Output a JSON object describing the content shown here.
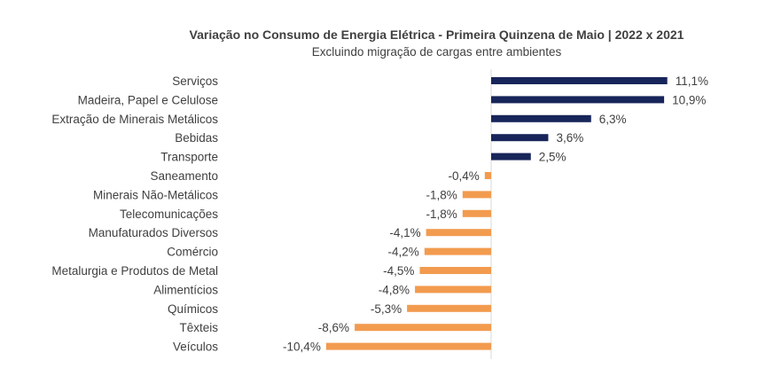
{
  "chart_data": {
    "type": "bar",
    "orientation": "horizontal",
    "title": "Variação no Consumo de Energia Elétrica - Primeira Quinzena de Maio | 2022 x 2021",
    "subtitle": "Excluindo migração de cargas entre ambientes",
    "categories": [
      "Serviços",
      "Madeira, Papel e Celulose",
      "Extração de Minerais Metálicos",
      "Bebidas",
      "Transporte",
      "Saneamento",
      "Minerais Não-Metálicos",
      "Telecomunicações",
      "Manufaturados Diversos",
      "Comércio",
      "Metalurgia e Produtos de Metal",
      "Alimentícios",
      "Químicos",
      "Têxteis",
      "Veículos"
    ],
    "values": [
      11.1,
      10.9,
      6.3,
      3.6,
      2.5,
      -0.4,
      -1.8,
      -1.8,
      -4.1,
      -4.2,
      -4.5,
      -4.8,
      -5.3,
      -8.6,
      -10.4
    ],
    "value_labels": [
      "11,1%",
      "10,9%",
      "6,3%",
      "3,6%",
      "2,5%",
      "-0,4%",
      "-1,8%",
      "-1,8%",
      "-4,1%",
      "-4,2%",
      "-4,5%",
      "-4,8%",
      "-5,3%",
      "-8,6%",
      "-10,4%"
    ],
    "colors": {
      "positive": "#17255a",
      "negative": "#f29b4f",
      "axis": "#d9d9d9"
    },
    "xlabel": "",
    "ylabel": "",
    "grid": false,
    "legend": "none"
  }
}
